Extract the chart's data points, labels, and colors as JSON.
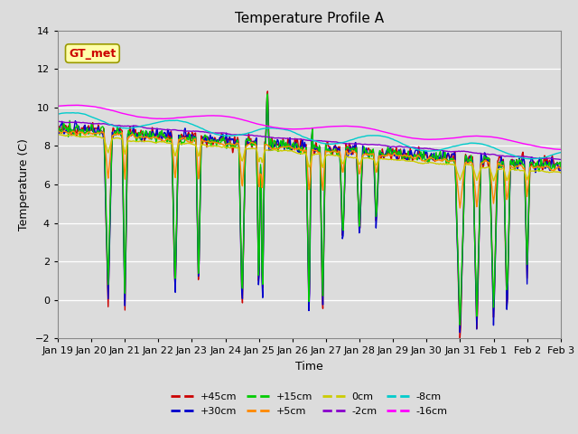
{
  "title": "Temperature Profile A",
  "xlabel": "Time",
  "ylabel": "Temperature (C)",
  "ylim": [
    -2,
    14
  ],
  "legend": [
    "+45cm",
    "+30cm",
    "+15cm",
    "+5cm",
    "0cm",
    "-2cm",
    "-8cm",
    "-16cm"
  ],
  "line_colors": [
    "#cc0000",
    "#0000cc",
    "#00cc00",
    "#ff8800",
    "#cccc00",
    "#8800cc",
    "#00cccc",
    "#ff00ff"
  ],
  "tick_labels": [
    "Jan 19",
    "Jan 20",
    "Jan 21",
    "Jan 22",
    "Jan 23",
    "Jan 24",
    "Jan 25",
    "Jan 26",
    "Jan 27",
    "Jan 28",
    "Jan 29",
    "Jan 30",
    "Jan 31",
    "Feb 1",
    "Feb 2",
    "Feb 3"
  ],
  "yticks": [
    -2,
    0,
    2,
    4,
    6,
    8,
    10,
    12,
    14
  ],
  "fig_bg": "#dcdcdc",
  "ax_bg": "#dcdcdc",
  "grid_color": "#ffffff",
  "gt_met_face": "#ffffaa",
  "gt_met_text": "#cc0000",
  "gt_met_edge": "#999900"
}
